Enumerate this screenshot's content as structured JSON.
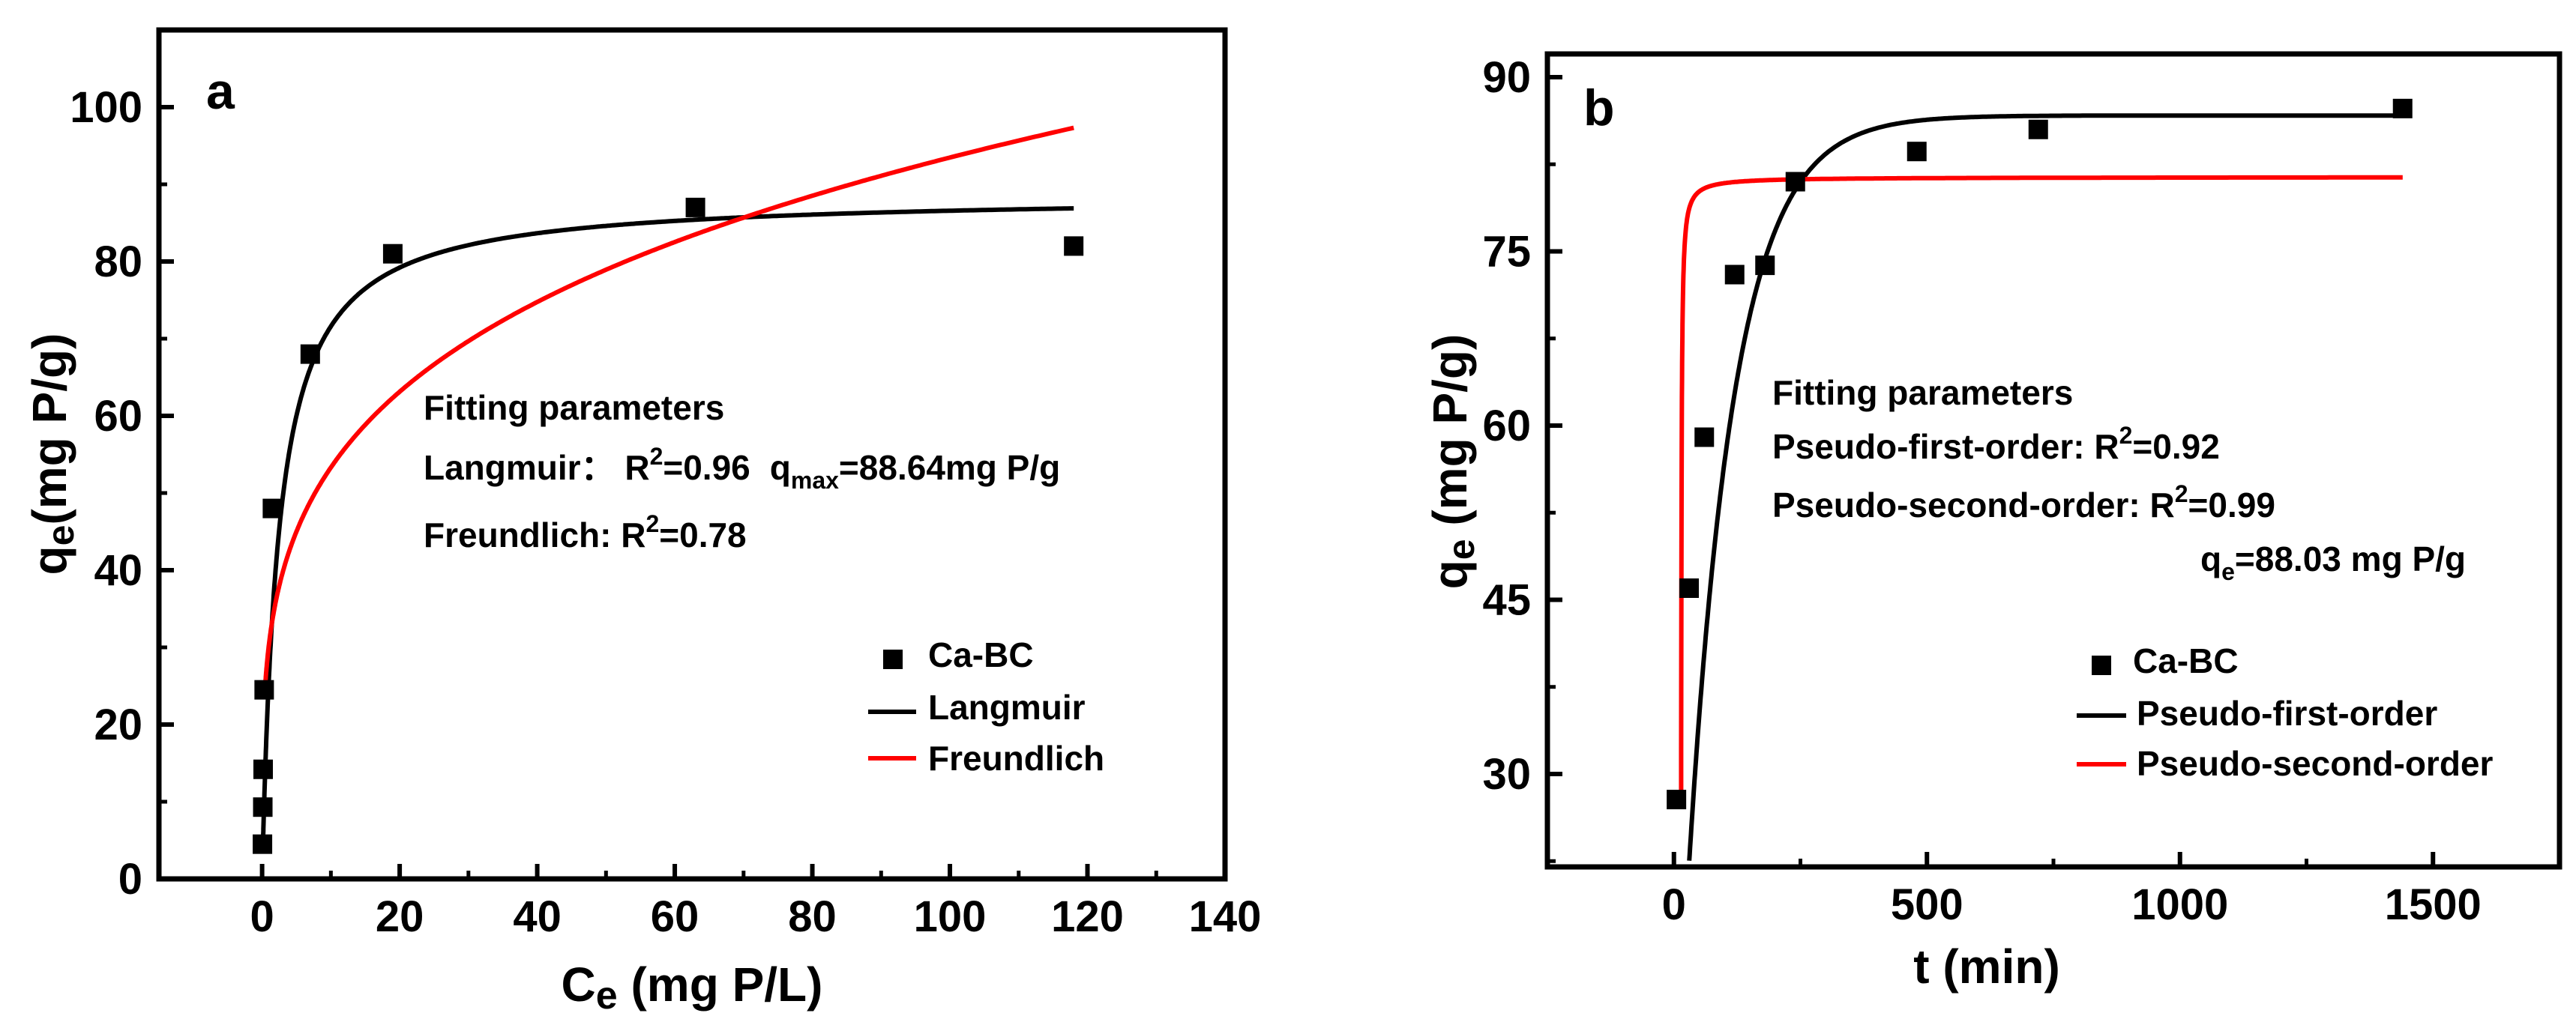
{
  "chart_data": [
    {
      "panel": "a",
      "type": "scatter",
      "title": "",
      "xlabel": "Ce (mg P/L)",
      "xlabel_main": "C",
      "xlabel_sub": "e",
      "xlabel_rest": " (mg P/L)",
      "ylabel": "qe(mg P/g)",
      "ylabel_main": "q",
      "ylabel_sub": "e",
      "ylabel_rest": "(mg P/g)",
      "xlim": [
        -15,
        140
      ],
      "ylim": [
        0,
        110
      ],
      "xticks": [
        0,
        20,
        40,
        60,
        80,
        100,
        120,
        140
      ],
      "yticks": [
        0,
        20,
        40,
        60,
        80,
        100
      ],
      "series": [
        {
          "name": "Ca-BC",
          "kind": "points",
          "color": "#000000",
          "points": [
            [
              0.05,
              4.5
            ],
            [
              0.1,
              9.3
            ],
            [
              0.15,
              14.2
            ],
            [
              0.3,
              24.5
            ],
            [
              1.5,
              48
            ],
            [
              7,
              68
            ],
            [
              19,
              81
            ],
            [
              63,
              87
            ],
            [
              118,
              82
            ]
          ]
        },
        {
          "name": "Langmuir",
          "kind": "langmuir",
          "color": "#000000",
          "qmax": 88.64,
          "KL": 0.42,
          "xrange": [
            0.15,
            118
          ]
        },
        {
          "name": "Freundlich",
          "kind": "freundlich",
          "color": "#ff0000",
          "KF": 30.4,
          "n": 4.1,
          "xrange": [
            0.5,
            118
          ]
        }
      ],
      "annotations": {
        "heading": "Fitting parameters",
        "langmuir_prefix": "Langmuir： R",
        "langmuir_r2_value": "=0.96",
        "qmax_label": "q",
        "qmax_sub": "max",
        "qmax_value": "=88.64mg P/g",
        "freundlich_prefix": "Freundlich: R",
        "freundlich_r2_value": "=0.78",
        "sup": "2"
      },
      "legend": [
        "Ca-BC",
        "Langmuir",
        "Freundlich"
      ],
      "panel_label": "a"
    },
    {
      "panel": "b",
      "type": "scatter",
      "title": "",
      "xlabel": "t (min)",
      "ylabel": "qe (mg P/g)",
      "ylabel_main": "q",
      "ylabel_sub": "e",
      "ylabel_rest": " (mg P/g)",
      "xlim": [
        -250,
        1750
      ],
      "ylim": [
        22,
        92
      ],
      "xticks": [
        0,
        500,
        1000,
        1500
      ],
      "yticks": [
        30,
        45,
        60,
        75,
        90
      ],
      "series": [
        {
          "name": "Ca-BC",
          "kind": "points",
          "color": "#000000",
          "points": [
            [
              5,
              27.8
            ],
            [
              30,
              46
            ],
            [
              60,
              59
            ],
            [
              120,
              73
            ],
            [
              180,
              73.8
            ],
            [
              240,
              81
            ],
            [
              480,
              83.6
            ],
            [
              720,
              85.5
            ],
            [
              1440,
              87.3
            ]
          ]
        },
        {
          "name": "Pseudo-first-order",
          "kind": "first_order",
          "color": "#000000",
          "qe": 86.7,
          "k": 0.011,
          "t0": 3,
          "trange": [
            3,
            1440
          ]
        },
        {
          "name": "Pseudo-second-order",
          "kind": "second_order",
          "color": "#ff0000",
          "qe": 81.4,
          "k": 0.022,
          "t0": 14,
          "trange": [
            14,
            1440
          ]
        }
      ],
      "annotations": {
        "heading": "Fitting parameters",
        "pfo_prefix": "Pseudo-first-order: R",
        "pfo_r2_value": "=0.92",
        "pso_prefix": "Pseudo-second-order: R",
        "pso_r2_value": "=0.99",
        "qe_label": "q",
        "qe_sub": "e",
        "qe_value": "=88.03 mg P/g",
        "sup": "2"
      },
      "legend": [
        "Ca-BC",
        "Pseudo-first-order",
        "Pseudo-second-order"
      ],
      "panel_label": "b"
    }
  ]
}
